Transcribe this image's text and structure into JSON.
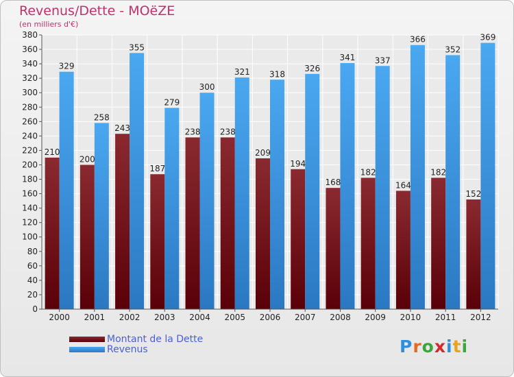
{
  "header": {
    "title": "Revenus/Dette - MOëZE",
    "subtitle": "(en milliers d'€)"
  },
  "legend": {
    "items": [
      {
        "label": "Montant de la Dette",
        "color": "#6b0a10"
      },
      {
        "label": "Revenus",
        "color": "#3d9be9"
      }
    ]
  },
  "logo": {
    "text": "Proxiti",
    "letters": [
      "P",
      "r",
      "o",
      "x",
      "i",
      "t",
      "i"
    ],
    "colors": [
      "#2f8fde",
      "#e86a1c",
      "#3aa73a",
      "#d62a2a",
      "#2f8fde",
      "#e8a51c",
      "#3aa73a"
    ]
  },
  "chart_data": {
    "type": "bar",
    "title": "Revenus/Dette - MOëZE",
    "subtitle": "(en milliers d'€)",
    "categories": [
      "2000",
      "2001",
      "2002",
      "2003",
      "2004",
      "2005",
      "2006",
      "2007",
      "2008",
      "2009",
      "2010",
      "2011",
      "2012"
    ],
    "series": [
      {
        "name": "Montant de la Dette",
        "color": "#6b0a10",
        "values": [
          210,
          200,
          243,
          187,
          238,
          238,
          209,
          194,
          168,
          182,
          164,
          182,
          152
        ]
      },
      {
        "name": "Revenus",
        "color": "#3d9be9",
        "values": [
          329,
          258,
          355,
          279,
          300,
          321,
          318,
          326,
          341,
          337,
          366,
          352,
          369
        ]
      }
    ],
    "ylim": [
      0,
      380
    ],
    "yticks": [
      0,
      20,
      40,
      60,
      80,
      100,
      120,
      140,
      160,
      180,
      200,
      220,
      240,
      260,
      280,
      300,
      320,
      340,
      360,
      380
    ],
    "grid": true,
    "legend_position": "bottom-left"
  }
}
